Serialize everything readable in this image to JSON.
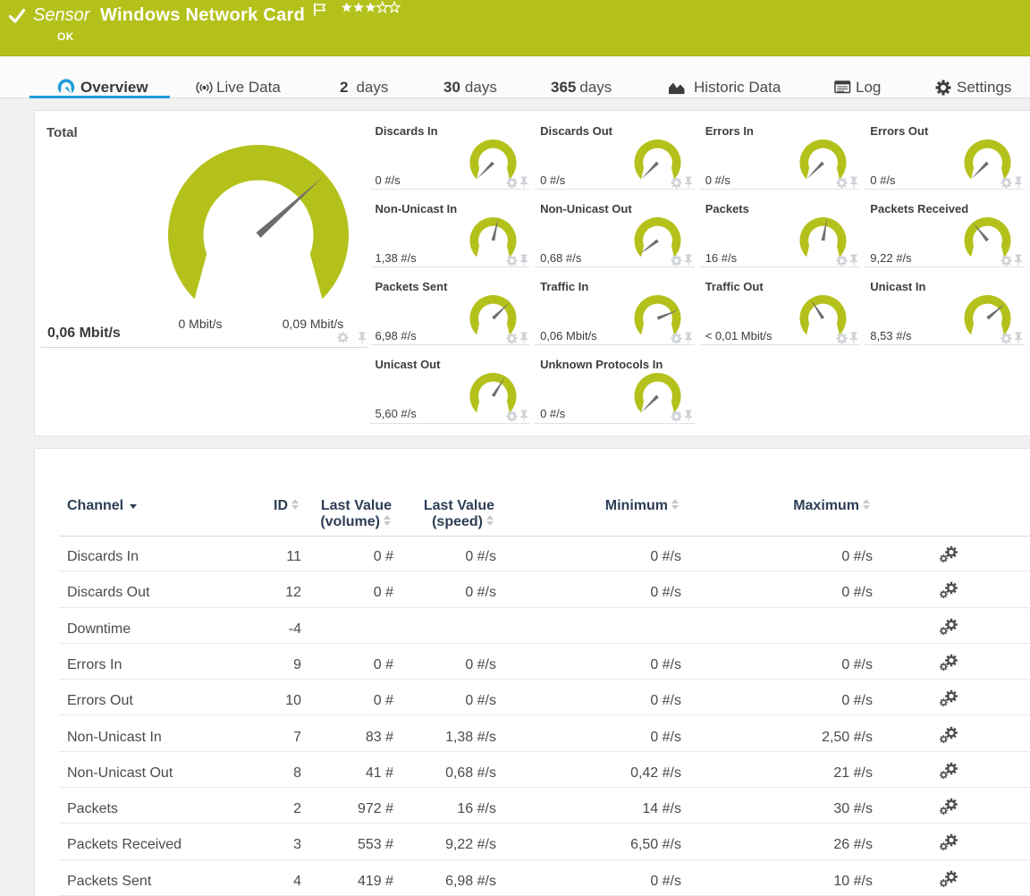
{
  "colors": {
    "header_green": "#b4c11b",
    "gauge_green": "#b4c11b",
    "accent_blue": "#1b9cd9",
    "table_header_navy": "#2d3e54",
    "needle_gray": "#6d6d6d",
    "muted_icon_gray": "#ccd0d5"
  },
  "header": {
    "type_label": "Sensor",
    "title": "Windows Network Card",
    "status": "OK",
    "rating_filled": 3,
    "rating_total": 5
  },
  "tabs": {
    "overview": {
      "label": "Overview"
    },
    "live_data": {
      "label": "Live Data"
    },
    "days2": {
      "num": "2",
      "unit": "days"
    },
    "days30": {
      "num": "30",
      "unit": "days"
    },
    "days365": {
      "num": "365",
      "unit": "days"
    },
    "historic_data": {
      "label": "Historic Data"
    },
    "log": {
      "label": "Log"
    },
    "settings": {
      "label": "Settings"
    }
  },
  "gauges": {
    "panel_label": "Total",
    "total": {
      "value": "0,06 Mbit/s",
      "scale_min": "0 Mbit/s",
      "scale_max": "0,09 Mbit/s",
      "needle_angle": 48
    },
    "channels": [
      {
        "name": "Discards In",
        "value": "0 #/s",
        "needle_angle": -135
      },
      {
        "name": "Discards Out",
        "value": "0 #/s",
        "needle_angle": -135
      },
      {
        "name": "Errors In",
        "value": "0 #/s",
        "needle_angle": -135
      },
      {
        "name": "Errors Out",
        "value": "0 #/s",
        "needle_angle": -135
      },
      {
        "name": "Non-Unicast In",
        "value": "1,38 #/s",
        "needle_angle": 13
      },
      {
        "name": "Non-Unicast Out",
        "value": "0,68 #/s",
        "needle_angle": -127
      },
      {
        "name": "Packets",
        "value": "16 #/s",
        "needle_angle": 10
      },
      {
        "name": "Packets Received",
        "value": "9,22 #/s",
        "needle_angle": -39
      },
      {
        "name": "Packets Sent",
        "value": "6,98 #/s",
        "needle_angle": 46
      },
      {
        "name": "Traffic In",
        "value": "0,06 Mbit/s",
        "needle_angle": 68
      },
      {
        "name": "Traffic Out",
        "value": "< 0,01 Mbit/s",
        "needle_angle": -33
      },
      {
        "name": "Unicast In",
        "value": "8,53 #/s",
        "needle_angle": 50
      },
      {
        "name": "Unicast Out",
        "value": "5,60 #/s",
        "needle_angle": 32
      },
      {
        "name": "Unknown Protocols In",
        "value": "0 #/s",
        "needle_angle": -135
      }
    ]
  },
  "table": {
    "columns": {
      "channel": "Channel",
      "id": "ID",
      "last_value_volume_line1": "Last Value",
      "last_value_volume_line2": "(volume)",
      "last_value_speed_line1": "Last Value",
      "last_value_speed_line2": "(speed)",
      "minimum": "Minimum",
      "maximum": "Maximum"
    },
    "rows": [
      {
        "channel": "Discards In",
        "id": "11",
        "volume": "0 #",
        "speed": "0 #/s",
        "min": "0 #/s",
        "max": "0 #/s"
      },
      {
        "channel": "Discards Out",
        "id": "12",
        "volume": "0 #",
        "speed": "0 #/s",
        "min": "0 #/s",
        "max": "0 #/s"
      },
      {
        "channel": "Downtime",
        "id": "-4",
        "volume": "",
        "speed": "",
        "min": "",
        "max": ""
      },
      {
        "channel": "Errors In",
        "id": "9",
        "volume": "0 #",
        "speed": "0 #/s",
        "min": "0 #/s",
        "max": "0 #/s"
      },
      {
        "channel": "Errors Out",
        "id": "10",
        "volume": "0 #",
        "speed": "0 #/s",
        "min": "0 #/s",
        "max": "0 #/s"
      },
      {
        "channel": "Non-Unicast In",
        "id": "7",
        "volume": "83 #",
        "speed": "1,38 #/s",
        "min": "0 #/s",
        "max": "2,50 #/s"
      },
      {
        "channel": "Non-Unicast Out",
        "id": "8",
        "volume": "41 #",
        "speed": "0,68 #/s",
        "min": "0,42 #/s",
        "max": "21 #/s"
      },
      {
        "channel": "Packets",
        "id": "2",
        "volume": "972 #",
        "speed": "16 #/s",
        "min": "14 #/s",
        "max": "30 #/s"
      },
      {
        "channel": "Packets Received",
        "id": "3",
        "volume": "553 #",
        "speed": "9,22 #/s",
        "min": "6,50 #/s",
        "max": "26 #/s"
      },
      {
        "channel": "Packets Sent",
        "id": "4",
        "volume": "419 #",
        "speed": "6,98 #/s",
        "min": "0 #/s",
        "max": "10 #/s"
      }
    ]
  }
}
